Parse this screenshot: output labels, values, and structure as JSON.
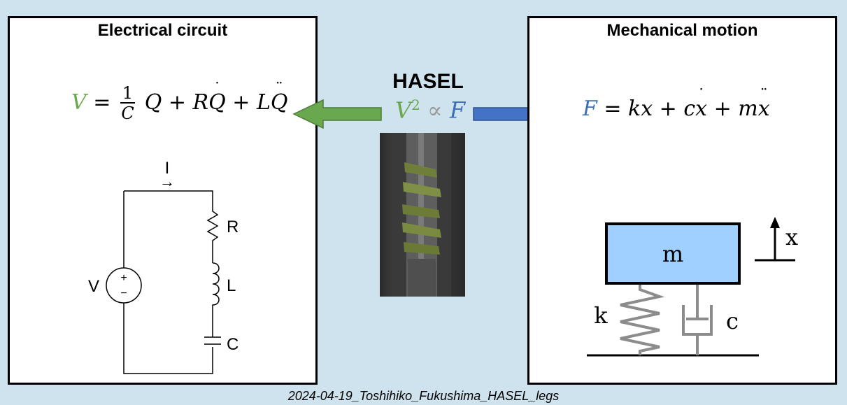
{
  "left_panel": {
    "title": "Electrical circuit",
    "equation": {
      "lhs": "V",
      "equals": "=",
      "frac_num": "1",
      "frac_den": "C",
      "rest_a": "Q + R",
      "qdot": "Q",
      "rest_b": " + L",
      "qddot": "Q"
    },
    "circuit": {
      "current_label": "I",
      "current_arrow": "→",
      "source_label": "V",
      "plus": "+",
      "minus": "−",
      "r_label": "R",
      "l_label": "L",
      "c_label": "C"
    }
  },
  "center": {
    "title": "HASEL",
    "relation": {
      "v": "V",
      "sup": "2",
      "prop": "∝",
      "f": "F"
    }
  },
  "right_panel": {
    "title": "Mechanical motion",
    "equation": {
      "lhs": "F",
      "rest_a": " = kx + c",
      "xdot": "x",
      "rest_b": " + m",
      "xddot": "x"
    },
    "diagram": {
      "mass_label": "m",
      "spring_label": "k",
      "damper_label": "c",
      "x_label": "x"
    }
  },
  "footer": {
    "caption": "2024-04-19_Toshihiko_Fukushima_HASEL_legs"
  },
  "colors": {
    "background": "#cfe3ee",
    "green": "#6aa84f",
    "blue": "#3b6fb6",
    "mass_fill": "#9fd0ff",
    "spring_gray": "#8c8c8c"
  }
}
